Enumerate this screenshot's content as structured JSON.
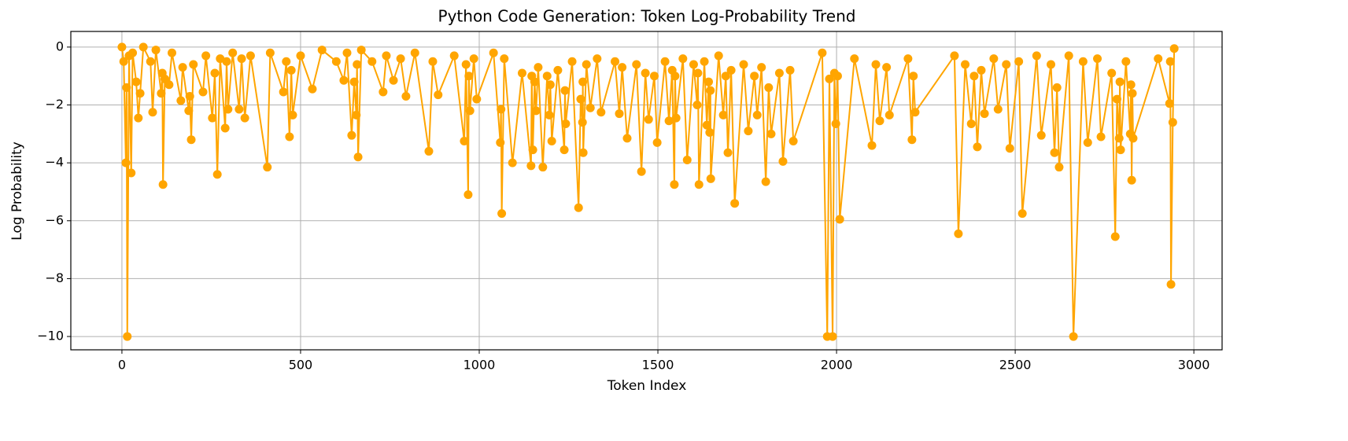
{
  "chart_data": {
    "type": "line",
    "title": "Python Code Generation: Token Log-Probability Trend",
    "x_label": "Token Index",
    "y_label": "Log Probability",
    "x": [
      0,
      5,
      11,
      13,
      15,
      20,
      26,
      30,
      40,
      46,
      51,
      60,
      80,
      86,
      95,
      110,
      113,
      115,
      120,
      132,
      140,
      165,
      170,
      187,
      190,
      194,
      200,
      227,
      235,
      253,
      260,
      267,
      275,
      289,
      293,
      297,
      310,
      328,
      335,
      344,
      360,
      407,
      415,
      452,
      460,
      469,
      474,
      478,
      500,
      533,
      560,
      600,
      621,
      630,
      643,
      650,
      656,
      658,
      661,
      670,
      700,
      731,
      740,
      760,
      780,
      795,
      820,
      859,
      870,
      885,
      930,
      958,
      963,
      969,
      971,
      974,
      985,
      993,
      1040,
      1059,
      1061,
      1063,
      1070,
      1093,
      1120,
      1145,
      1147,
      1150,
      1155,
      1159,
      1165,
      1178,
      1190,
      1196,
      1199,
      1203,
      1220,
      1238,
      1240,
      1242,
      1260,
      1278,
      1284,
      1289,
      1290,
      1291,
      1300,
      1311,
      1330,
      1341,
      1380,
      1392,
      1400,
      1414,
      1440,
      1454,
      1465,
      1474,
      1490,
      1498,
      1520,
      1531,
      1540,
      1546,
      1548,
      1551,
      1570,
      1582,
      1600,
      1610,
      1612,
      1615,
      1630,
      1637,
      1642,
      1645,
      1647,
      1648,
      1670,
      1683,
      1690,
      1696,
      1705,
      1715,
      1740,
      1753,
      1770,
      1778,
      1790,
      1802,
      1810,
      1817,
      1840,
      1850,
      1870,
      1879,
      1960,
      1974,
      1980,
      1989,
      1994,
      1998,
      2003,
      2009,
      2050,
      2099,
      2110,
      2121,
      2140,
      2148,
      2200,
      2211,
      2215,
      2220,
      2330,
      2341,
      2360,
      2377,
      2385,
      2394,
      2405,
      2414,
      2440,
      2452,
      2475,
      2485,
      2510,
      2520,
      2560,
      2573,
      2600,
      2610,
      2617,
      2623,
      2650,
      2663,
      2690,
      2703,
      2730,
      2740,
      2770,
      2780,
      2785,
      2791,
      2793,
      2795,
      2810,
      2822,
      2824,
      2826,
      2828,
      2830,
      2900,
      2932,
      2934,
      2936,
      2941,
      2945
    ],
    "series": [
      {
        "color": "#ffa500",
        "values": [
          0,
          -0.5,
          -4.0,
          -1.4,
          -10,
          -0.3,
          -4.35,
          -0.2,
          -1.2,
          -2.45,
          -1.6,
          0,
          -0.5,
          -2.25,
          -0.1,
          -1.6,
          -0.9,
          -4.75,
          -1.1,
          -1.3,
          -0.2,
          -1.85,
          -0.7,
          -2.2,
          -1.7,
          -3.2,
          -0.6,
          -1.55,
          -0.3,
          -2.45,
          -0.9,
          -4.4,
          -0.4,
          -2.8,
          -0.5,
          -2.15,
          -0.2,
          -2.15,
          -0.4,
          -2.45,
          -0.3,
          -4.15,
          -0.2,
          -1.55,
          -0.5,
          -3.1,
          -0.8,
          -2.35,
          -0.3,
          -1.45,
          -0.1,
          -0.5,
          -1.15,
          -0.2,
          -3.05,
          -1.2,
          -2.35,
          -0.6,
          -3.8,
          -0.1,
          -0.5,
          -1.55,
          -0.3,
          -1.15,
          -0.4,
          -1.7,
          -0.2,
          -3.6,
          -0.5,
          -1.65,
          -0.3,
          -3.25,
          -0.6,
          -5.1,
          -1.0,
          -2.2,
          -0.4,
          -1.8,
          -0.2,
          -3.3,
          -2.15,
          -5.75,
          -0.4,
          -4.0,
          -0.9,
          -4.1,
          -1.0,
          -3.55,
          -1.2,
          -2.2,
          -0.7,
          -4.15,
          -1.0,
          -2.35,
          -1.3,
          -3.25,
          -0.8,
          -3.55,
          -1.5,
          -2.65,
          -0.5,
          -5.55,
          -1.8,
          -2.6,
          -1.2,
          -3.65,
          -0.6,
          -2.1,
          -0.4,
          -2.25,
          -0.5,
          -2.3,
          -0.7,
          -3.15,
          -0.6,
          -4.3,
          -0.9,
          -2.5,
          -1.0,
          -3.3,
          -0.5,
          -2.55,
          -0.8,
          -4.75,
          -1.0,
          -2.45,
          -0.4,
          -3.9,
          -0.6,
          -2.0,
          -0.9,
          -4.75,
          -0.5,
          -2.7,
          -1.2,
          -2.95,
          -1.5,
          -4.55,
          -0.3,
          -2.35,
          -1.0,
          -3.65,
          -0.8,
          -5.4,
          -0.6,
          -2.9,
          -1.0,
          -2.35,
          -0.7,
          -4.65,
          -1.4,
          -3.0,
          -0.9,
          -3.95,
          -0.8,
          -3.25,
          -0.2,
          -10,
          -1.1,
          -10,
          -0.9,
          -2.65,
          -1.0,
          -5.95,
          -0.4,
          -3.4,
          -0.6,
          -2.55,
          -0.7,
          -2.35,
          -0.4,
          -3.2,
          -1.0,
          -2.25,
          -0.3,
          -6.45,
          -0.6,
          -2.65,
          -1.0,
          -3.45,
          -0.8,
          -2.3,
          -0.4,
          -2.15,
          -0.6,
          -3.5,
          -0.5,
          -5.75,
          -0.3,
          -3.05,
          -0.6,
          -3.65,
          -1.4,
          -4.15,
          -0.3,
          -10,
          -0.5,
          -3.3,
          -0.4,
          -3.1,
          -0.9,
          -6.55,
          -1.8,
          -3.15,
          -1.2,
          -3.55,
          -0.5,
          -3.0,
          -1.3,
          -4.6,
          -1.6,
          -3.15,
          -0.4,
          -1.95,
          -0.5,
          -8.2,
          -2.6,
          -0.05
        ]
      }
    ],
    "xlim": [
      -143,
      3079
    ],
    "ylim": [
      -10.46,
      0.54
    ],
    "xticks": [
      0,
      500,
      1000,
      1500,
      2000,
      2500,
      3000
    ],
    "yticks": [
      {
        "value": -10,
        "label": "−10"
      },
      {
        "value": -8,
        "label": "−8"
      },
      {
        "value": -6,
        "label": "−6"
      },
      {
        "value": -4,
        "label": "−4"
      },
      {
        "value": -2,
        "label": "−2"
      },
      0
    ],
    "grid": true,
    "markers": true
  }
}
